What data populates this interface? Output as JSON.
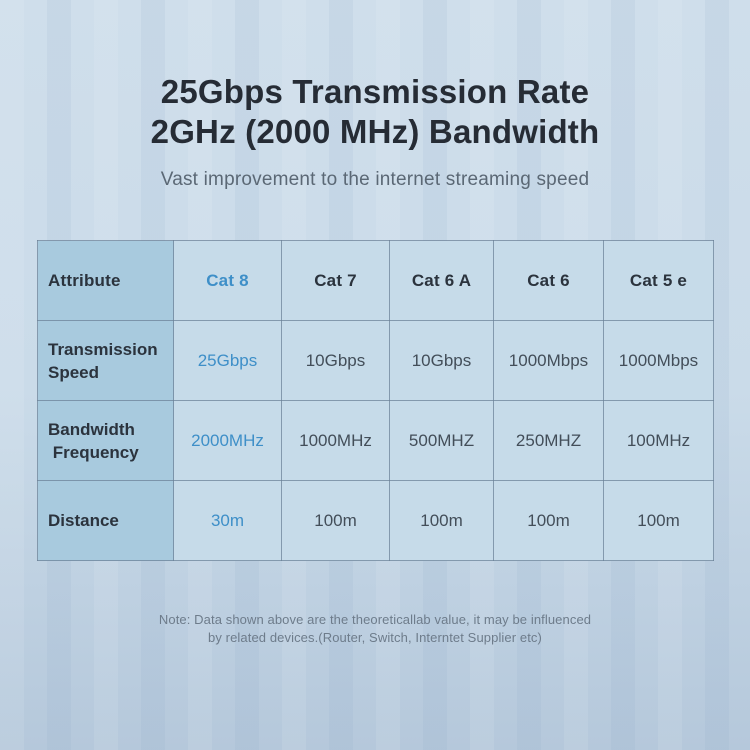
{
  "header": {
    "title_line1": "25Gbps Transmission Rate",
    "title_line2": "2GHz (2000 MHz) Bandwidth",
    "subtitle": "Vast improvement to the internet streaming speed"
  },
  "chart_data": {
    "type": "table",
    "columns": [
      "Attribute",
      "Cat 8",
      "Cat 7",
      "Cat 6 A",
      "Cat 6",
      "Cat 5 e"
    ],
    "highlighted_column": "Cat 8",
    "rows": [
      {
        "label": "Transmission\nSpeed",
        "values": [
          "25Gbps",
          "10Gbps",
          "10Gbps",
          "1000Mbps",
          "1000Mbps"
        ]
      },
      {
        "label": "Bandwidth\n Frequency",
        "values": [
          "2000MHz",
          "1000MHz",
          "500MHZ",
          "250MHZ",
          "100MHz"
        ]
      },
      {
        "label": "Distance",
        "values": [
          "30m",
          "100m",
          "100m",
          "100m",
          "100m"
        ]
      }
    ]
  },
  "note": {
    "line1": "Note: Data shown above are the theoreticallab value, it may be influenced",
    "line2": "by related devices.(Router, Switch, Interntet Supplier etc)"
  },
  "colors": {
    "accent_blue": "#3e8fc8",
    "title_text": "#262c35",
    "subtitle_text": "#5b6875",
    "label_text": "#2b333d",
    "value_text": "#434e59",
    "note_text": "#6e7c8b",
    "attribute_column_bg": "#a8cade",
    "cell_bg": "#c6dbe9",
    "table_border": "#698096",
    "background_top": "#cfdeeb",
    "background_bottom": "#b5c8db"
  }
}
